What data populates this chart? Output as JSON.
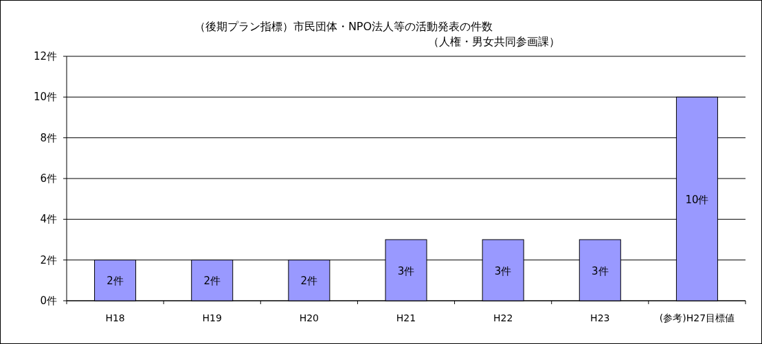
{
  "chart_data": {
    "type": "bar",
    "title": "（後期プラン指標）市民団体・NPO法人等の活動発表の件数",
    "subtitle": "（人権・男女共同参画課）",
    "categories": [
      "H18",
      "H19",
      "H20",
      "H21",
      "H22",
      "H23",
      "(参考)H27目標値"
    ],
    "values": [
      2,
      2,
      2,
      3,
      3,
      3,
      10
    ],
    "value_labels": [
      "2件",
      "2件",
      "2件",
      "3件",
      "3件",
      "3件",
      "10件"
    ],
    "color": "#9999ff",
    "ylim": [
      0,
      12
    ],
    "yticks": [
      {
        "value": 0,
        "label": "0件"
      },
      {
        "value": 2,
        "label": "2件"
      },
      {
        "value": 4,
        "label": "4件"
      },
      {
        "value": 6,
        "label": "6件"
      },
      {
        "value": 8,
        "label": "8件"
      },
      {
        "value": 10,
        "label": "10件"
      },
      {
        "value": 12,
        "label": "12件"
      }
    ],
    "grid": "y"
  }
}
